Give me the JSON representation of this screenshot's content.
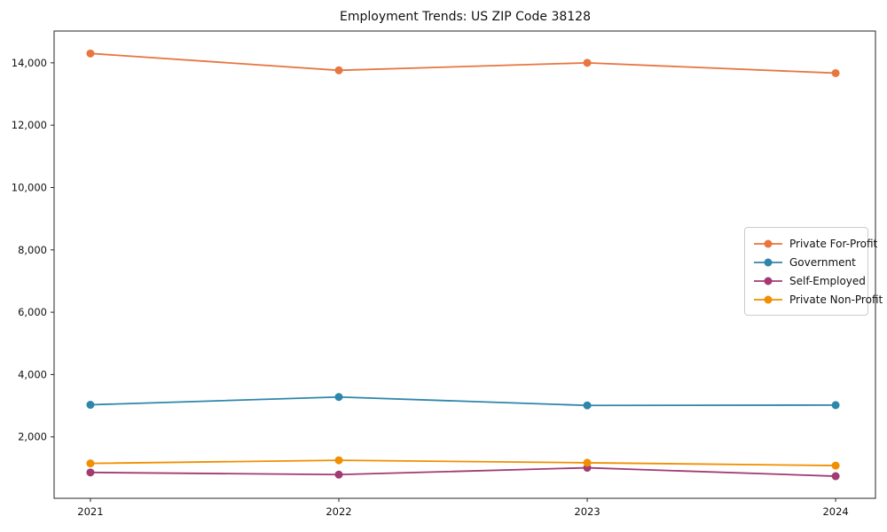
{
  "chart_data": {
    "type": "line",
    "title": "Employment Trends: US ZIP Code 38128",
    "x": [
      2021,
      2022,
      2023,
      2024
    ],
    "x_labels": [
      "2021",
      "2022",
      "2023",
      "2024"
    ],
    "series": [
      {
        "name": "Private For-Profit",
        "color": "#E8763F",
        "values": [
          14300,
          13760,
          14000,
          13670
        ]
      },
      {
        "name": "Government",
        "color": "#2E86AB",
        "values": [
          3030,
          3280,
          3010,
          3020
        ]
      },
      {
        "name": "Self-Employed",
        "color": "#A23B72",
        "values": [
          860,
          790,
          1010,
          740
        ]
      },
      {
        "name": "Private Non-Profit",
        "color": "#F18F01",
        "values": [
          1150,
          1250,
          1170,
          1080
        ]
      }
    ],
    "yticks": [
      2000,
      4000,
      6000,
      8000,
      10000,
      12000,
      14000
    ],
    "ytick_labels": [
      "2,000",
      "4,000",
      "6,000",
      "8,000",
      "10,000",
      "12,000",
      "14,000"
    ],
    "ylim": [
      30,
      15020
    ],
    "grid": false,
    "legend_position": "center right"
  }
}
